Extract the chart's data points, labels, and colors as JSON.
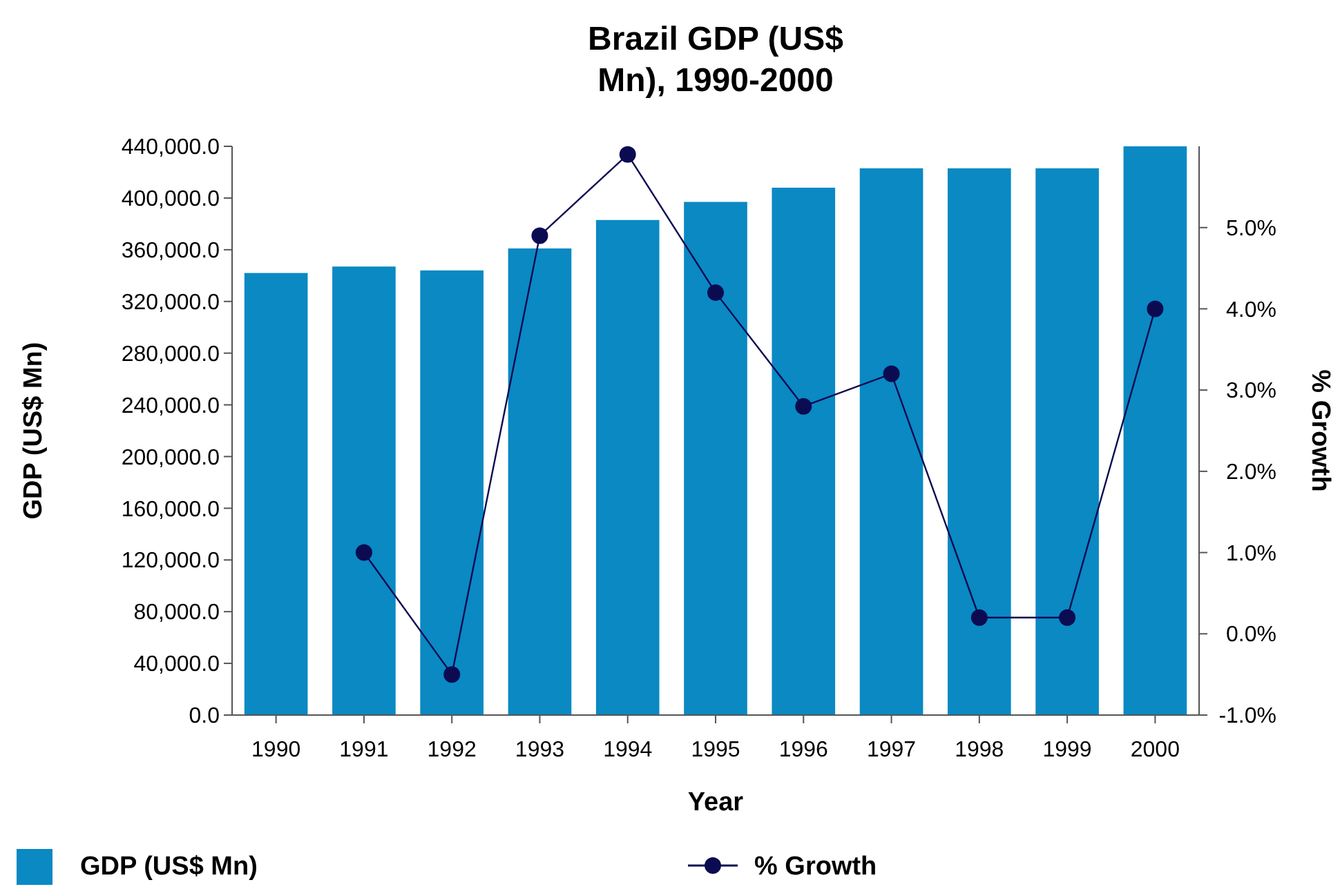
{
  "chart_data": {
    "type": "bar",
    "title": "Brazil GDP (US$\nMn), 1990-2000",
    "xlabel": "Year",
    "ylabel": "GDP (US$ Mn)",
    "y2label": "% Growth",
    "categories": [
      "1990",
      "1991",
      "1992",
      "1993",
      "1994",
      "1995",
      "1996",
      "1997",
      "1998",
      "1999",
      "2000"
    ],
    "series": [
      {
        "name": "GDP (US$ Mn)",
        "color": "#0a89c3",
        "values": [
          342000,
          347000,
          344000,
          361000,
          383000,
          397000,
          408000,
          423000,
          423000,
          423000,
          440000
        ]
      },
      {
        "name": "% Growth",
        "type": "line",
        "axis": "y2",
        "color": "#0b0b52",
        "marker": "circle",
        "values": [
          null,
          1.0,
          -0.5,
          4.9,
          5.9,
          4.2,
          2.8,
          3.2,
          0.2,
          0.2,
          4.0
        ]
      }
    ],
    "ylim": [
      0,
      440000
    ],
    "yticks": [
      {
        "value": 0,
        "label": "0.0"
      },
      {
        "value": 40000,
        "label": "40,000.0"
      },
      {
        "value": 80000,
        "label": "80,000.0"
      },
      {
        "value": 120000,
        "label": "120,000.0"
      },
      {
        "value": 160000,
        "label": "160,000.0"
      },
      {
        "value": 200000,
        "label": "200,000.0"
      },
      {
        "value": 240000,
        "label": "240,000.0"
      },
      {
        "value": 280000,
        "label": "280,000.0"
      },
      {
        "value": 320000,
        "label": "320,000.0"
      },
      {
        "value": 360000,
        "label": "360,000.0"
      },
      {
        "value": 400000,
        "label": "400,000.0"
      },
      {
        "value": 440000,
        "label": "440,000.0"
      }
    ],
    "y2lim": [
      -1,
      6
    ],
    "y2ticks": [
      {
        "value": -1,
        "label": "-1.0%"
      },
      {
        "value": 0,
        "label": "0.0%"
      },
      {
        "value": 1,
        "label": "1.0%"
      },
      {
        "value": 2,
        "label": "2.0%"
      },
      {
        "value": 3,
        "label": "3.0%"
      },
      {
        "value": 4,
        "label": "4.0%"
      },
      {
        "value": 5,
        "label": "5.0%"
      }
    ],
    "legend": "bottom",
    "grid": false
  }
}
